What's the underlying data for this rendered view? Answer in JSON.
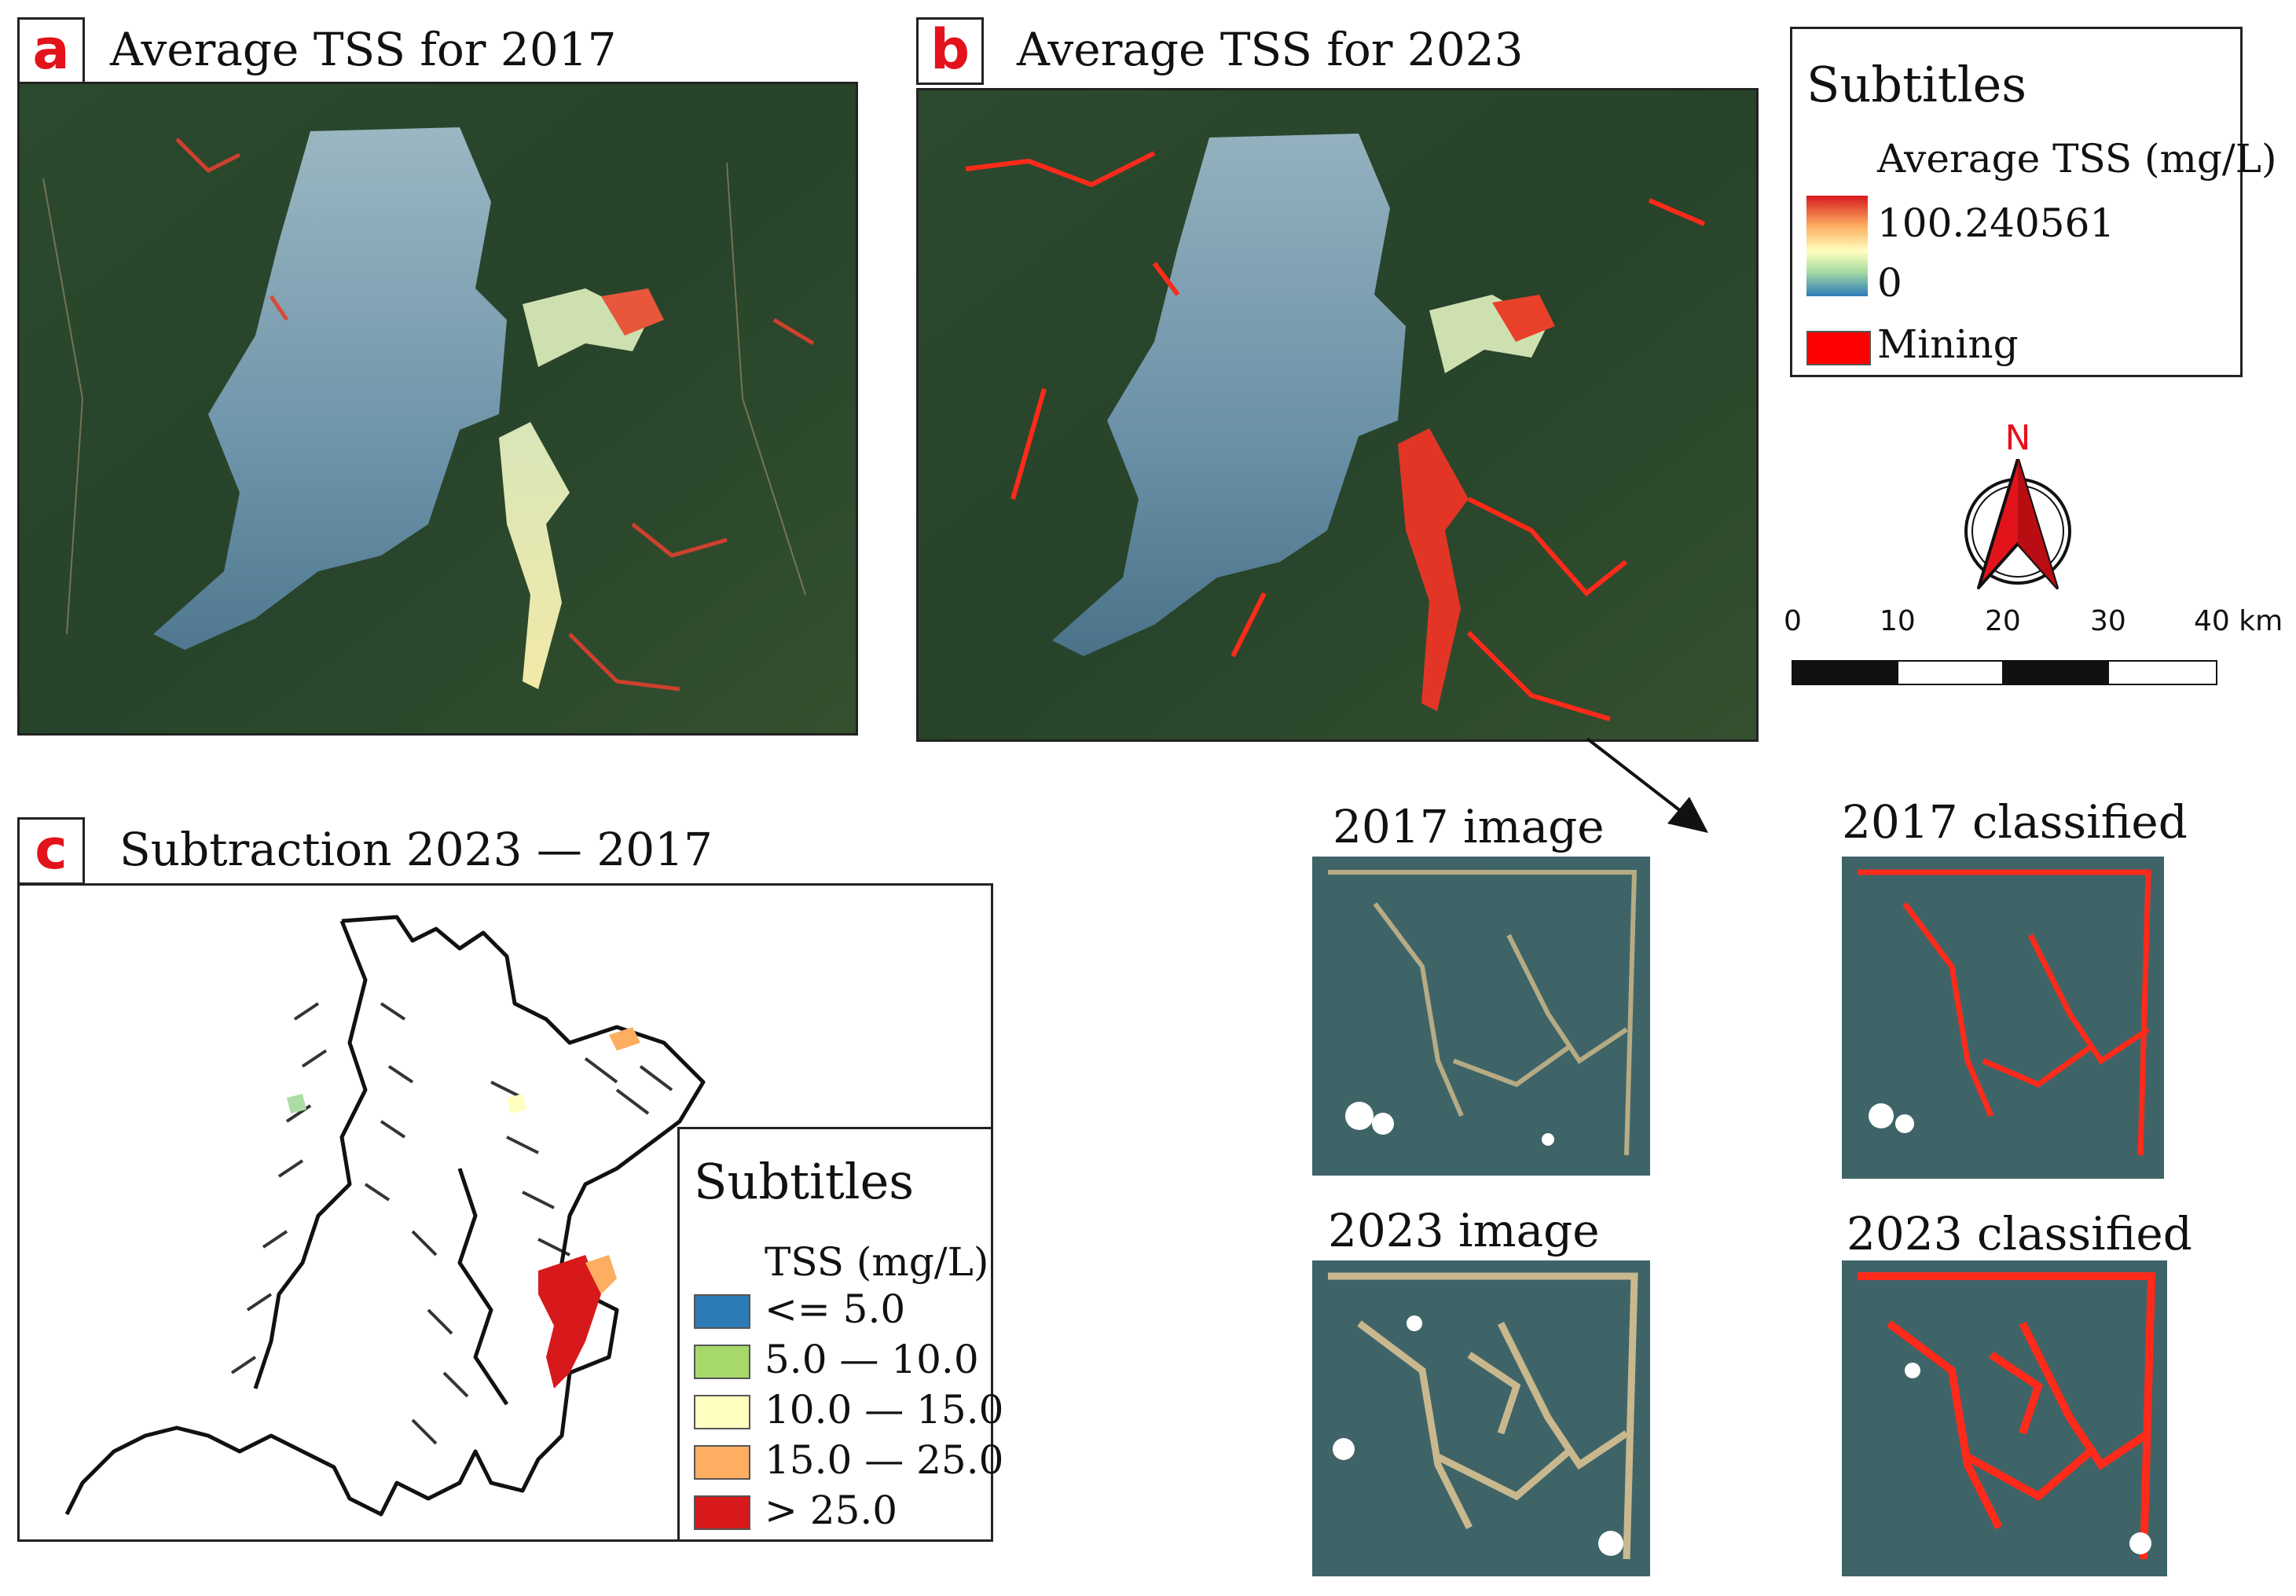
{
  "panel_a": {
    "letter": "a",
    "title": "Average TSS for 2017"
  },
  "panel_b": {
    "letter": "b",
    "title": "Average TSS for 2023"
  },
  "panel_c": {
    "letter": "c",
    "title": "Subtraction 2023 — 2017"
  },
  "legend_ab": {
    "title": "Subtitles",
    "gradient_label": "Average TSS (mg/L)",
    "max_label": "100.240561",
    "min_label": "0",
    "mining_label": "Mining",
    "colors": {
      "high": "#d7191c",
      "mid": "#ffffbf",
      "low": "#2c7bb6",
      "mining": "#ff0000"
    }
  },
  "north_arrow": {
    "label": "N",
    "color": "#e3131b"
  },
  "scale_bar": {
    "ticks": [
      "0",
      "10",
      "20",
      "30",
      "40 km"
    ]
  },
  "legend_c": {
    "title": "Subtitles",
    "subtitle": "TSS (mg/L)",
    "classes": [
      {
        "label": "<= 5.0",
        "color": "#2c7bb6"
      },
      {
        "label": "5.0 — 10.0",
        "color": "#a6d96a"
      },
      {
        "label": "10.0 — 15.0",
        "color": "#ffffbf"
      },
      {
        "label": "15.0 — 25.0",
        "color": "#fdae61"
      },
      {
        "label": "> 25.0",
        "color": "#d7191c"
      }
    ]
  },
  "insets": {
    "img2017": "2017 image",
    "cls2017": "2017 classified",
    "img2023": "2023 image",
    "cls2023": "2023 classified"
  }
}
